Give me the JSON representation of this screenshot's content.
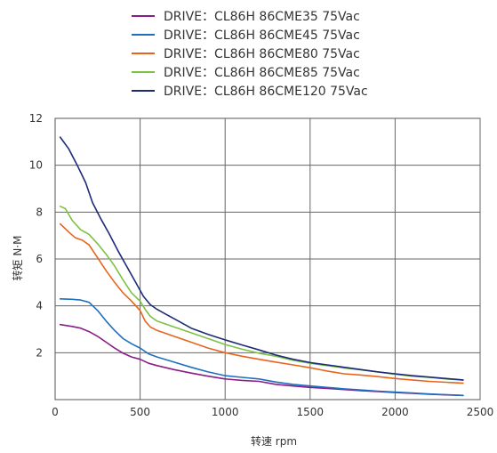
{
  "chart_data": {
    "type": "line",
    "title": "",
    "xlabel": "转速 rpm",
    "ylabel": "转矩 N·M",
    "xlim": [
      0,
      2500
    ],
    "ylim": [
      0,
      12
    ],
    "xticks": [
      0,
      500,
      1000,
      1500,
      2000,
      2500
    ],
    "yticks": [
      2,
      4,
      6,
      8,
      10,
      12
    ],
    "grid": true,
    "legend_position": "top",
    "series": [
      {
        "name": "DRIVE：CL86H 86CME35   75Vac",
        "color": "#8a1d87",
        "x": [
          30,
          100,
          150,
          200,
          250,
          300,
          350,
          400,
          450,
          500,
          550,
          600,
          700,
          800,
          900,
          1000,
          1100,
          1200,
          1300,
          1400,
          1500,
          1600,
          1700,
          1800,
          1900,
          2000,
          2100,
          2200,
          2300,
          2400
        ],
        "y": [
          3.2,
          3.12,
          3.05,
          2.9,
          2.7,
          2.45,
          2.2,
          1.98,
          1.82,
          1.72,
          1.55,
          1.45,
          1.28,
          1.13,
          1.0,
          0.88,
          0.82,
          0.78,
          0.65,
          0.58,
          0.52,
          0.48,
          0.43,
          0.38,
          0.34,
          0.3,
          0.27,
          0.23,
          0.2,
          0.18
        ]
      },
      {
        "name": "DRIVE：CL86H 86CME45   75Vac",
        "color": "#1f6fbf",
        "x": [
          30,
          100,
          150,
          200,
          250,
          300,
          350,
          400,
          450,
          500,
          550,
          600,
          700,
          800,
          900,
          1000,
          1100,
          1200,
          1300,
          1400,
          1500,
          1600,
          1700,
          1800,
          1900,
          2000,
          2100,
          2200,
          2300,
          2400
        ],
        "y": [
          4.3,
          4.28,
          4.25,
          4.15,
          3.8,
          3.35,
          2.95,
          2.6,
          2.38,
          2.2,
          1.95,
          1.82,
          1.6,
          1.38,
          1.18,
          1.02,
          0.95,
          0.88,
          0.75,
          0.65,
          0.58,
          0.52,
          0.46,
          0.41,
          0.36,
          0.32,
          0.28,
          0.24,
          0.21,
          0.18
        ]
      },
      {
        "name": "DRIVE：CL86H 86CME80   75Vac",
        "color": "#e8641c",
        "x": [
          30,
          80,
          120,
          160,
          200,
          250,
          300,
          350,
          400,
          450,
          500,
          530,
          560,
          600,
          700,
          800,
          900,
          1000,
          1100,
          1200,
          1300,
          1400,
          1500,
          1600,
          1700,
          1800,
          1900,
          2000,
          2100,
          2200,
          2300,
          2400
        ],
        "y": [
          7.5,
          7.15,
          6.9,
          6.8,
          6.6,
          6.05,
          5.5,
          5.0,
          4.55,
          4.2,
          3.8,
          3.35,
          3.1,
          2.95,
          2.7,
          2.45,
          2.2,
          2.0,
          1.85,
          1.72,
          1.6,
          1.48,
          1.36,
          1.22,
          1.1,
          1.05,
          0.98,
          0.9,
          0.84,
          0.78,
          0.74,
          0.7
        ]
      },
      {
        "name": "DRIVE：CL86H 86CME85   75Vac",
        "color": "#7cc242",
        "x": [
          30,
          60,
          100,
          150,
          200,
          250,
          300,
          350,
          400,
          450,
          500,
          530,
          560,
          600,
          700,
          800,
          900,
          1000,
          1100,
          1200,
          1300,
          1400,
          1500,
          1600,
          1700,
          1800,
          1900,
          2000,
          2100,
          2200,
          2300,
          2400
        ],
        "y": [
          8.25,
          8.15,
          7.65,
          7.25,
          7.05,
          6.65,
          6.2,
          5.7,
          5.1,
          4.55,
          4.2,
          3.85,
          3.55,
          3.35,
          3.1,
          2.85,
          2.6,
          2.35,
          2.15,
          1.98,
          1.85,
          1.68,
          1.55,
          1.45,
          1.35,
          1.27,
          1.18,
          1.08,
          1.0,
          0.95,
          0.88,
          0.83
        ]
      },
      {
        "name": "DRIVE：CL86H 86CME120 75Vac",
        "color": "#1d2a78",
        "x": [
          30,
          80,
          130,
          180,
          220,
          270,
          320,
          370,
          420,
          470,
          520,
          560,
          600,
          650,
          700,
          800,
          900,
          1000,
          1100,
          1200,
          1300,
          1400,
          1500,
          1600,
          1700,
          1800,
          1900,
          2000,
          2100,
          2200,
          2300,
          2400
        ],
        "y": [
          11.2,
          10.7,
          10.0,
          9.25,
          8.4,
          7.7,
          7.05,
          6.35,
          5.7,
          5.05,
          4.4,
          4.05,
          3.85,
          3.65,
          3.45,
          3.05,
          2.78,
          2.55,
          2.33,
          2.12,
          1.9,
          1.72,
          1.58,
          1.48,
          1.38,
          1.28,
          1.18,
          1.1,
          1.02,
          0.96,
          0.9,
          0.84
        ]
      }
    ]
  }
}
